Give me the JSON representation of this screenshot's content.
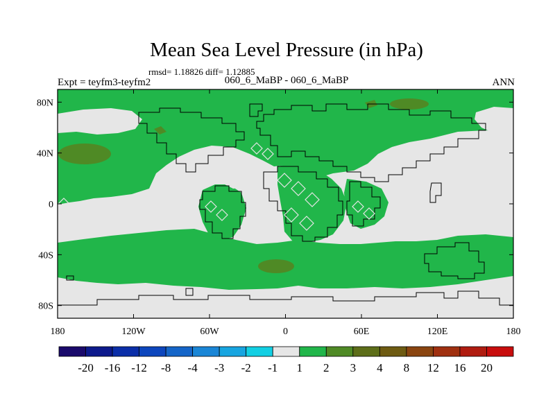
{
  "chart_data": {
    "type": "heatmap",
    "title": "Mean Sea Level Pressure (in hPa)",
    "stats": "rmsd= 1.18826 diff= 1.12885",
    "left_label": "Expt = teyfm3-teyfm2",
    "center_label": "060_6_MaBP - 060_6_MaBP",
    "right_label": "ANN",
    "x_ticks": [
      "180",
      "120W",
      "60W",
      "0",
      "60E",
      "120E",
      "180"
    ],
    "x_values": [
      -180,
      -120,
      -60,
      0,
      60,
      120,
      180
    ],
    "y_ticks": [
      "80N",
      "40N",
      "0",
      "40S",
      "80S"
    ],
    "y_values": [
      80,
      40,
      0,
      -40,
      -80
    ],
    "xlim": [
      -180,
      180
    ],
    "ylim": [
      -90,
      90
    ],
    "colorbar": {
      "labels": [
        "-20",
        "-16",
        "-12",
        "-8",
        "-4",
        "-3",
        "-2",
        "-1",
        "1",
        "2",
        "3",
        "4",
        "8",
        "12",
        "16",
        "20"
      ],
      "colors": [
        "#1a0a6b",
        "#0d1a8c",
        "#0b2ea8",
        "#0d46bd",
        "#1565c8",
        "#1a86d6",
        "#17a5e0",
        "#12cfe3",
        "#e6e6e6",
        "#21b64a",
        "#4f8a25",
        "#5d6e19",
        "#6e5b12",
        "#8a4510",
        "#a03010",
        "#b01c10",
        "#c80d0d"
      ]
    },
    "regions": [
      {
        "level": "1 to 2",
        "color": "#21b64a",
        "description": "large positive anomaly areas (mid-latitude bands, continents)"
      },
      {
        "level": "2 to 3",
        "color": "#4f8a25",
        "description": "maxima near 40N 170W and 50S 15W"
      },
      {
        "level": "-1 to 1",
        "color": "#e6e6e6",
        "description": "near-zero background"
      }
    ]
  }
}
